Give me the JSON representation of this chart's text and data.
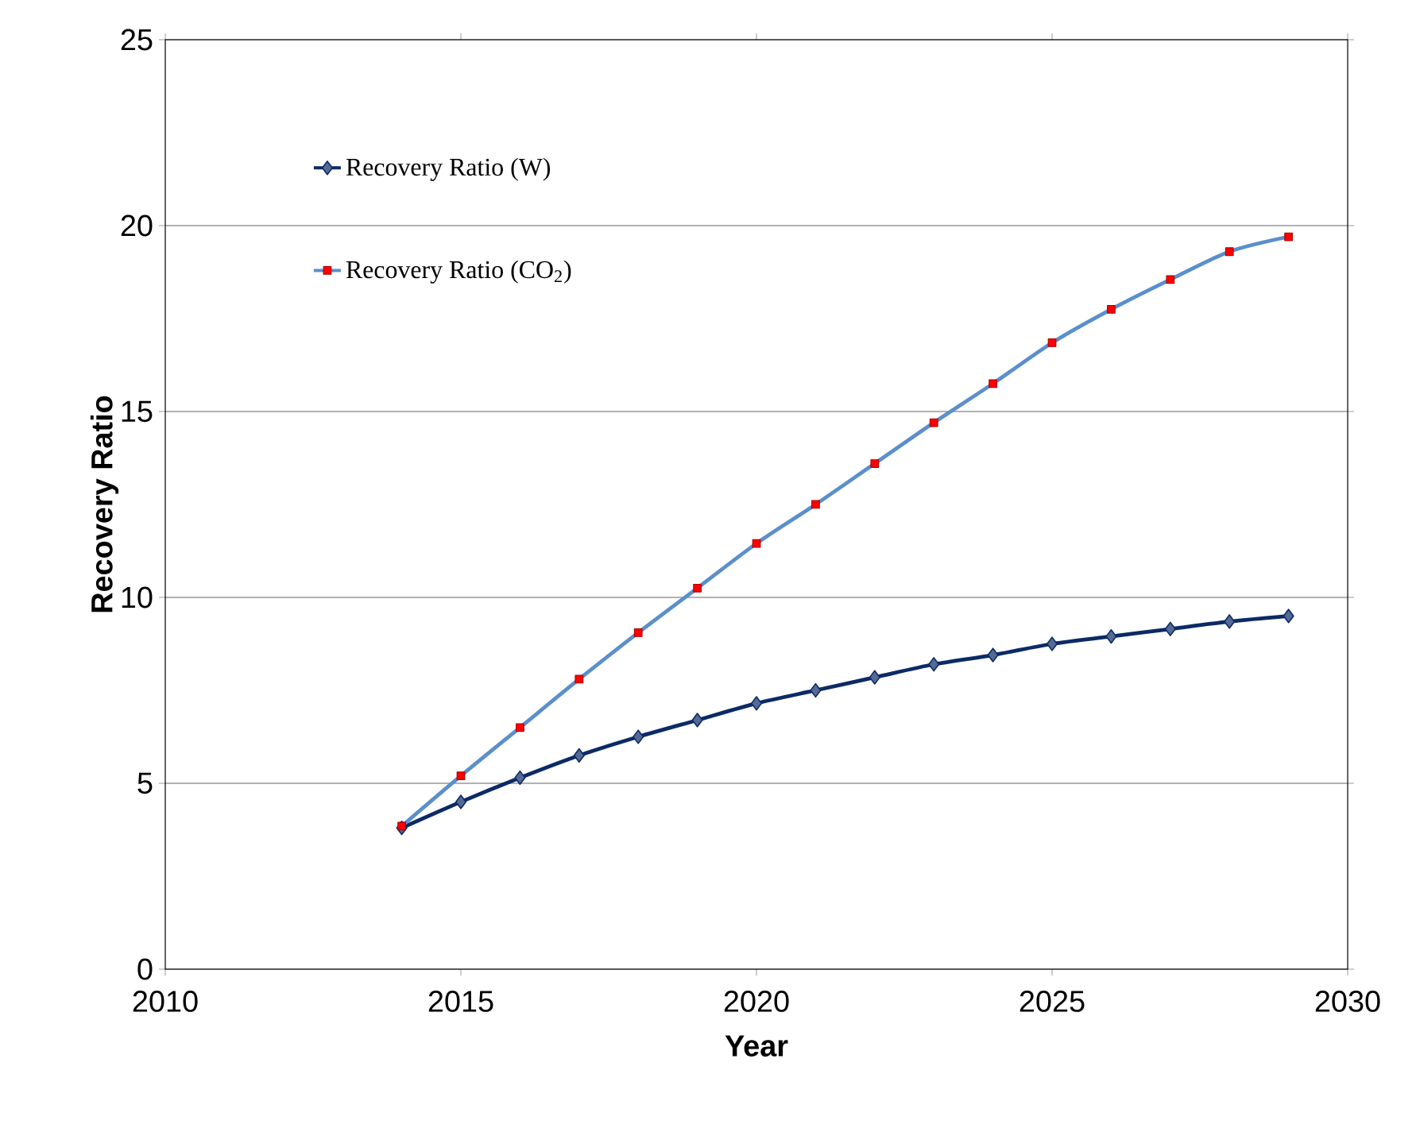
{
  "chart_data": {
    "type": "line",
    "xlabel": "Year",
    "ylabel": "Recovery Ratio",
    "x": [
      2014,
      2015,
      2016,
      2017,
      2018,
      2019,
      2020,
      2021,
      2022,
      2023,
      2024,
      2025,
      2026,
      2027,
      2028,
      2029
    ],
    "series": [
      {
        "name": "Recovery Ratio (W)",
        "color": "#0b2a66",
        "marker": "diamond",
        "values": [
          3.8,
          4.5,
          5.15,
          5.75,
          6.25,
          6.7,
          7.15,
          7.5,
          7.85,
          8.2,
          8.45,
          8.75,
          8.95,
          9.15,
          9.35,
          9.5
        ]
      },
      {
        "name": "Recovery Ratio (CO$_{2}$)",
        "color": "#5b8fcc",
        "marker": "square",
        "values": [
          3.85,
          5.2,
          6.5,
          7.8,
          9.05,
          10.25,
          11.45,
          12.5,
          13.6,
          14.7,
          15.75,
          16.85,
          17.75,
          18.55,
          19.3,
          19.7
        ]
      }
    ],
    "xlim": [
      2010,
      2030
    ],
    "xticks": [
      2010,
      2015,
      2020,
      2025,
      2030
    ],
    "ylim": [
      0,
      25
    ],
    "yticks": [
      0,
      5,
      10,
      15,
      20,
      25
    ],
    "grid": "y",
    "legend": "top left",
    "line_style": "solid"
  }
}
